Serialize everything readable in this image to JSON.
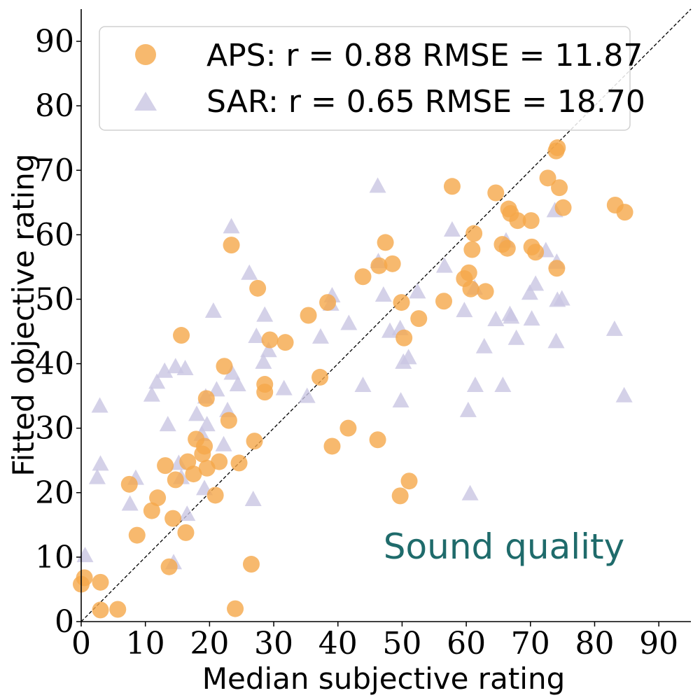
{
  "colors": {
    "aps": "#f5a74a",
    "sar": "#c9c6e2",
    "annotation": "#1f6b6b",
    "identity_line": "#000000"
  },
  "chart_data": {
    "type": "scatter",
    "title": "",
    "xlabel": "Median subjective rating",
    "ylabel": "Fitted objective rating",
    "xlim": [
      0,
      95
    ],
    "ylim": [
      0,
      95
    ],
    "xticks": [
      0,
      10,
      20,
      30,
      40,
      50,
      60,
      70,
      80,
      90
    ],
    "yticks": [
      0,
      10,
      20,
      30,
      40,
      50,
      60,
      70,
      80,
      90
    ],
    "grid": false,
    "legend_position": "top-left",
    "identity_line": true,
    "annotation": "Sound quality",
    "series": [
      {
        "name": "APS",
        "legend_text": "APS: r = 0.88 RMSE = 11.87",
        "marker": "circle",
        "points": [
          [
            0.0,
            5.8
          ],
          [
            0.5,
            6.8
          ],
          [
            3.0,
            6.1
          ],
          [
            3.0,
            1.8
          ],
          [
            5.7,
            1.9
          ],
          [
            7.5,
            21.3
          ],
          [
            8.7,
            13.4
          ],
          [
            11.0,
            17.2
          ],
          [
            11.9,
            19.2
          ],
          [
            13.1,
            24.2
          ],
          [
            13.7,
            8.5
          ],
          [
            14.3,
            16.0
          ],
          [
            14.7,
            22.0
          ],
          [
            15.6,
            44.4
          ],
          [
            16.3,
            13.8
          ],
          [
            16.6,
            24.8
          ],
          [
            17.5,
            22.9
          ],
          [
            17.9,
            28.3
          ],
          [
            18.9,
            26.0
          ],
          [
            19.2,
            27.2
          ],
          [
            19.5,
            34.6
          ],
          [
            19.6,
            23.8
          ],
          [
            20.9,
            19.6
          ],
          [
            21.5,
            24.8
          ],
          [
            22.3,
            39.6
          ],
          [
            23.0,
            31.2
          ],
          [
            23.4,
            58.4
          ],
          [
            24.0,
            2.0
          ],
          [
            24.6,
            24.6
          ],
          [
            26.5,
            8.9
          ],
          [
            27.0,
            28.0
          ],
          [
            27.5,
            51.7
          ],
          [
            28.6,
            36.8
          ],
          [
            28.6,
            35.6
          ],
          [
            29.4,
            43.7
          ],
          [
            31.8,
            43.3
          ],
          [
            35.4,
            47.5
          ],
          [
            37.2,
            37.9
          ],
          [
            38.4,
            49.5
          ],
          [
            39.1,
            27.2
          ],
          [
            41.6,
            30.0
          ],
          [
            43.9,
            53.5
          ],
          [
            46.2,
            28.2
          ],
          [
            46.4,
            55.2
          ],
          [
            47.4,
            58.8
          ],
          [
            48.5,
            55.5
          ],
          [
            49.7,
            19.5
          ],
          [
            49.9,
            49.5
          ],
          [
            50.3,
            44.0
          ],
          [
            51.1,
            21.8
          ],
          [
            52.6,
            47.0
          ],
          [
            56.5,
            49.7
          ],
          [
            57.8,
            67.5
          ],
          [
            59.7,
            53.2
          ],
          [
            60.4,
            54.1
          ],
          [
            60.7,
            51.6
          ],
          [
            60.9,
            57.7
          ],
          [
            61.2,
            60.2
          ],
          [
            63.0,
            51.2
          ],
          [
            64.6,
            66.5
          ],
          [
            65.6,
            58.5
          ],
          [
            66.4,
            57.9
          ],
          [
            66.6,
            64.0
          ],
          [
            66.9,
            63.3
          ],
          [
            68.0,
            62.2
          ],
          [
            70.1,
            62.2
          ],
          [
            70.2,
            58.1
          ],
          [
            70.8,
            57.3
          ],
          [
            72.7,
            68.8
          ],
          [
            74.0,
            73.0
          ],
          [
            74.1,
            54.8
          ],
          [
            74.2,
            73.5
          ],
          [
            74.5,
            67.3
          ],
          [
            75.1,
            64.2
          ],
          [
            83.2,
            64.6
          ],
          [
            84.7,
            63.5
          ]
        ]
      },
      {
        "name": "SAR",
        "legend_text": "SAR: r = 0.65 RMSE = 18.70",
        "marker": "triangle",
        "points": [
          [
            0.6,
            10.3
          ],
          [
            2.5,
            22.4
          ],
          [
            2.9,
            33.5
          ],
          [
            3.0,
            24.5
          ],
          [
            7.6,
            18.3
          ],
          [
            8.5,
            22.3
          ],
          [
            11.0,
            35.2
          ],
          [
            11.8,
            37.2
          ],
          [
            13.0,
            38.9
          ],
          [
            13.5,
            30.6
          ],
          [
            14.4,
            9.2
          ],
          [
            14.7,
            39.6
          ],
          [
            15.2,
            24.6
          ],
          [
            15.6,
            22.4
          ],
          [
            16.2,
            39.3
          ],
          [
            16.5,
            16.7
          ],
          [
            18.0,
            32.2
          ],
          [
            18.8,
            29.1
          ],
          [
            19.2,
            20.7
          ],
          [
            19.4,
            34.9
          ],
          [
            19.6,
            30.6
          ],
          [
            20.6,
            48.2
          ],
          [
            21.1,
            36.0
          ],
          [
            22.2,
            27.5
          ],
          [
            22.8,
            32.8
          ],
          [
            23.4,
            61.3
          ],
          [
            23.5,
            38.6
          ],
          [
            24.4,
            36.8
          ],
          [
            26.2,
            54.1
          ],
          [
            26.8,
            19.0
          ],
          [
            27.3,
            44.3
          ],
          [
            28.4,
            40.3
          ],
          [
            28.6,
            47.6
          ],
          [
            29.2,
            42.1
          ],
          [
            31.6,
            36.2
          ],
          [
            35.2,
            35.0
          ],
          [
            37.3,
            44.2
          ],
          [
            38.9,
            49.3
          ],
          [
            39.1,
            50.6
          ],
          [
            41.7,
            46.3
          ],
          [
            43.9,
            36.7
          ],
          [
            46.2,
            67.6
          ],
          [
            46.3,
            55.9
          ],
          [
            47.1,
            50.7
          ],
          [
            48.1,
            45.1
          ],
          [
            49.7,
            45.5
          ],
          [
            49.8,
            34.3
          ],
          [
            50.2,
            40.3
          ],
          [
            51.0,
            41.0
          ],
          [
            52.4,
            51.2
          ],
          [
            56.6,
            55.2
          ],
          [
            57.8,
            60.8
          ],
          [
            59.7,
            48.3
          ],
          [
            60.3,
            32.8
          ],
          [
            60.6,
            19.9
          ],
          [
            61.3,
            51.8
          ],
          [
            61.4,
            36.7
          ],
          [
            62.8,
            42.7
          ],
          [
            64.6,
            46.9
          ],
          [
            65.7,
            36.7
          ],
          [
            66.2,
            59.1
          ],
          [
            66.8,
            47.7
          ],
          [
            67.0,
            47.3
          ],
          [
            67.8,
            44.0
          ],
          [
            69.9,
            51.0
          ],
          [
            70.2,
            47.0
          ],
          [
            70.8,
            52.4
          ],
          [
            72.4,
            57.6
          ],
          [
            73.8,
            63.8
          ],
          [
            74.0,
            43.5
          ],
          [
            74.1,
            55.8
          ],
          [
            74.2,
            49.9
          ],
          [
            74.9,
            50.1
          ],
          [
            83.1,
            45.4
          ],
          [
            84.6,
            35.1
          ]
        ]
      }
    ]
  }
}
